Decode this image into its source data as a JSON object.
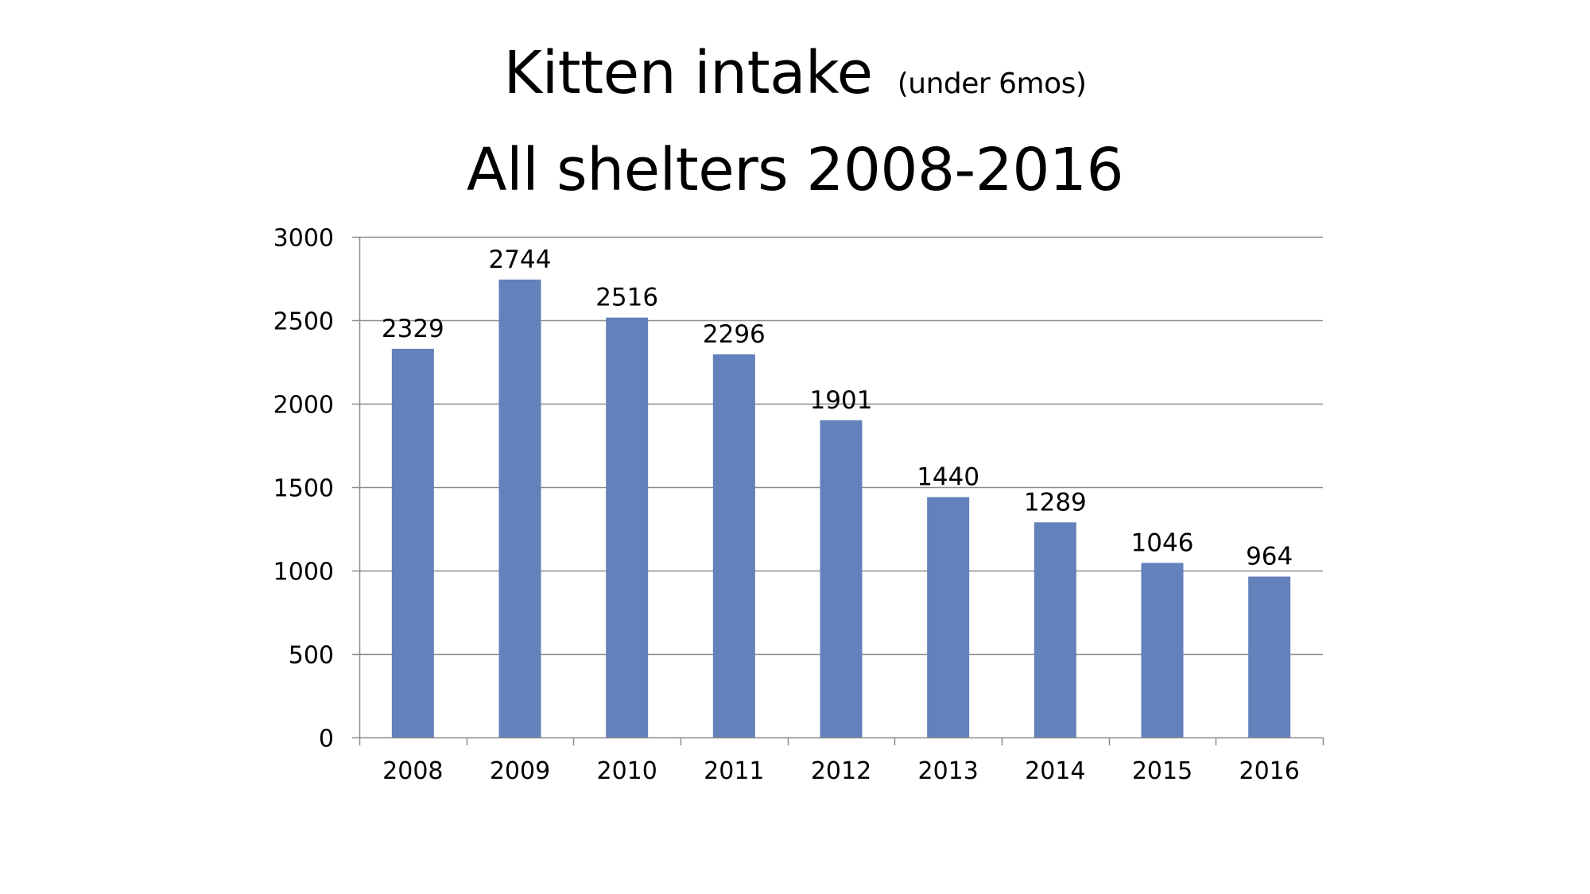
{
  "chart_data": {
    "type": "bar",
    "title": "Kitten intake",
    "title_note": "(under 6mos)",
    "subtitle": "All shelters 2008-2016",
    "xlabel": "",
    "ylabel": "",
    "categories": [
      "2008",
      "2009",
      "2010",
      "2011",
      "2012",
      "2013",
      "2014",
      "2015",
      "2016"
    ],
    "values": [
      2329,
      2744,
      2516,
      2296,
      1901,
      1440,
      1289,
      1046,
      964
    ],
    "data_labels": [
      "2329",
      "2744",
      "2516",
      "2296",
      "1901",
      "1440",
      "1289",
      "1046",
      "964"
    ],
    "ylim": [
      0,
      3000
    ],
    "yticks": [
      0,
      500,
      1000,
      1500,
      2000,
      2500,
      3000
    ],
    "ytick_labels": [
      "0",
      "500",
      "1000",
      "1500",
      "2000",
      "2500",
      "3000"
    ],
    "grid": true,
    "legend": "none",
    "bar_color": "#6381BA",
    "grid_color": "#8C8C8C"
  }
}
